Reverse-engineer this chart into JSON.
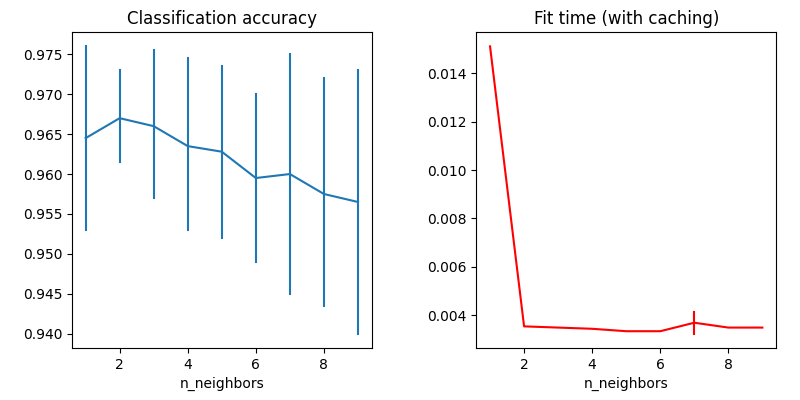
{
  "title_left": "Classification accuracy",
  "title_right": "Fit time (with caching)",
  "xlabel": "n_neighbors",
  "n_neighbors": [
    1,
    2,
    3,
    4,
    5,
    6,
    7,
    8,
    9
  ],
  "acc_mean": [
    0.9645,
    0.967,
    0.966,
    0.9635,
    0.9628,
    0.9595,
    0.96,
    0.9575,
    0.9565
  ],
  "acc_upper": [
    0.976,
    0.973,
    0.9755,
    0.9745,
    0.9735,
    0.97,
    0.975,
    0.972,
    0.973
  ],
  "acc_lower": [
    0.953,
    0.9615,
    0.957,
    0.953,
    0.952,
    0.949,
    0.945,
    0.9435,
    0.94
  ],
  "fit_mean": [
    0.0151,
    0.00355,
    0.0035,
    0.00345,
    0.00335,
    0.00335,
    0.0037,
    0.0035,
    0.0035
  ],
  "fit_upper": [
    0.0151,
    0.00355,
    0.0035,
    0.00345,
    0.00335,
    0.00335,
    0.00415,
    0.0035,
    0.0035
  ],
  "fit_lower": [
    0.0151,
    0.00355,
    0.0035,
    0.00345,
    0.00335,
    0.00335,
    0.00325,
    0.0035,
    0.0035
  ],
  "acc_xticks": [
    2,
    4,
    6,
    8
  ],
  "fit_xticks": [
    2,
    4,
    6,
    8
  ],
  "acc_xlim": [
    0.6,
    9.4
  ],
  "fit_xlim": [
    0.6,
    9.4
  ],
  "color_left": "#1f77b4",
  "color_right": "red"
}
